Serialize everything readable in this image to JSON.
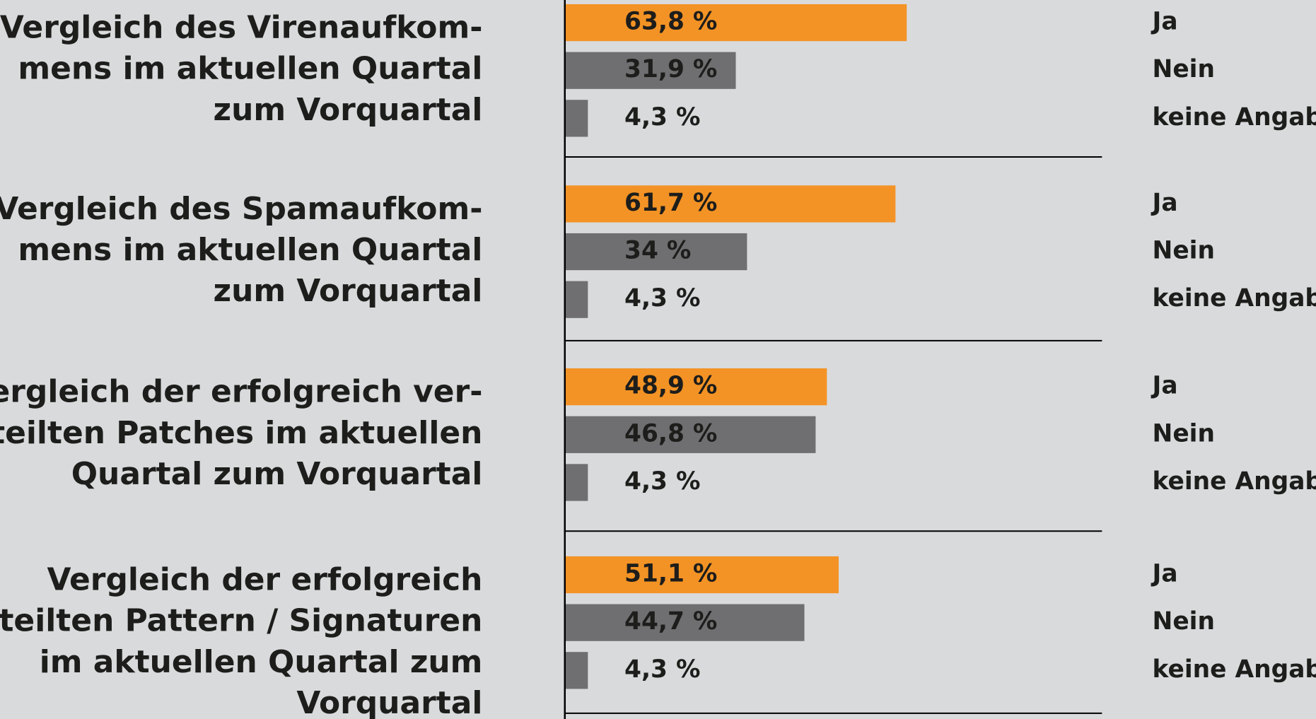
{
  "chart_data": {
    "type": "bar",
    "orientation": "horizontal",
    "categories": [
      "Vergleich des Virenaufkom-\nmens im aktuellen Quartal\nzum Vorquartal",
      "Vergleich des Spamaufkom-\nmens im aktuellen Quartal\nzum Vorquartal",
      "Vergleich der erfolgreich ver-\nteilten Patches im aktuellen\nQuartal zum Vorquartal",
      "Vergleich der erfolgreich\nverteilten Pattern / Signaturen\nim aktuellen Quartal zum\nVorquartal"
    ],
    "series": [
      {
        "name": "Ja",
        "color": "#f39325",
        "values": [
          63.8,
          61.7,
          48.9,
          51.1
        ],
        "value_labels": [
          "63,8 %",
          "61,7 %",
          "48,9 %",
          "51,1 %"
        ]
      },
      {
        "name": "Nein",
        "color": "#6f6f71",
        "values": [
          31.9,
          34,
          46.8,
          44.7
        ],
        "value_labels": [
          "31,9 %",
          "34 %",
          "46,8 %",
          "44,7 %"
        ]
      },
      {
        "name": "keine Angabe",
        "color": "#6f6f71",
        "values": [
          4.3,
          4.3,
          4.3,
          4.3
        ],
        "value_labels": [
          "4,3 %",
          "4,3 %",
          "4,3 %",
          "4,3 %"
        ]
      }
    ]
  }
}
